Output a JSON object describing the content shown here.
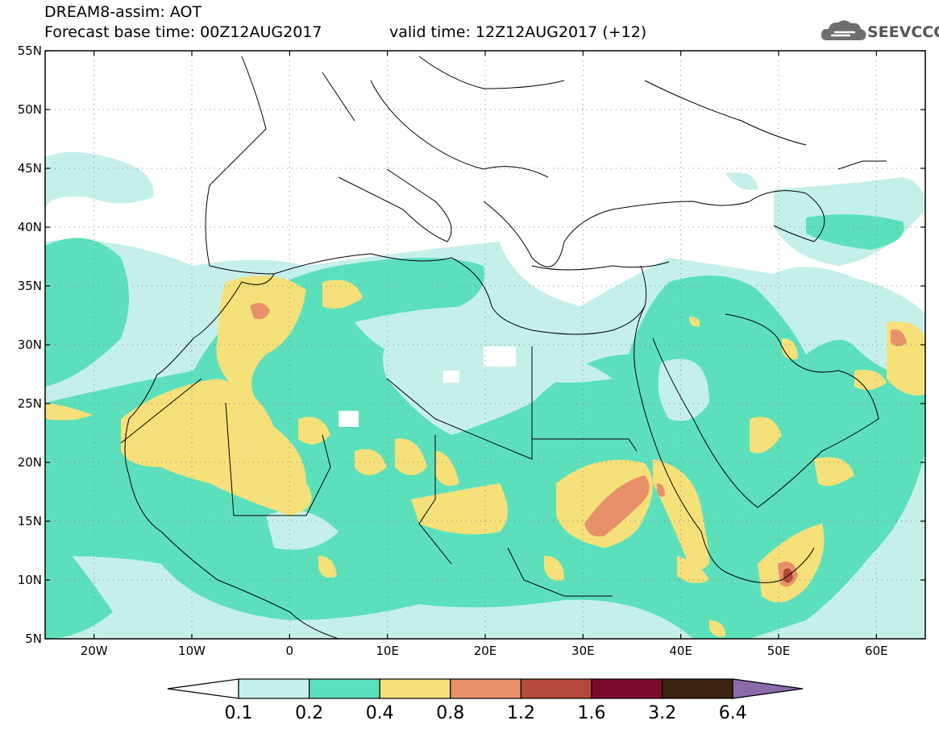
{
  "header": {
    "line1": "DREAM8-assim: AOT",
    "line2_base": "Forecast base time: 00Z12AUG2017",
    "line2_valid": "valid time: 12Z12AUG2017 (+12)"
  },
  "logo": {
    "text": "SEEVCCC",
    "icon": "cloud-logo-icon"
  },
  "map": {
    "lon_range": [
      -25,
      65
    ],
    "lat_range": [
      5,
      55
    ],
    "lat_ticks": [
      {
        "value": 55,
        "label": "55N"
      },
      {
        "value": 50,
        "label": "50N"
      },
      {
        "value": 45,
        "label": "45N"
      },
      {
        "value": 40,
        "label": "40N"
      },
      {
        "value": 35,
        "label": "35N"
      },
      {
        "value": 30,
        "label": "30N"
      },
      {
        "value": 25,
        "label": "25N"
      },
      {
        "value": 20,
        "label": "20N"
      },
      {
        "value": 15,
        "label": "15N"
      },
      {
        "value": 10,
        "label": "10N"
      },
      {
        "value": 5,
        "label": "5N"
      }
    ],
    "lon_ticks": [
      {
        "value": -20,
        "label": "20W"
      },
      {
        "value": -10,
        "label": "10W"
      },
      {
        "value": 0,
        "label": "0"
      },
      {
        "value": 10,
        "label": "10E"
      },
      {
        "value": 20,
        "label": "20E"
      },
      {
        "value": 30,
        "label": "30E"
      },
      {
        "value": 40,
        "label": "40E"
      },
      {
        "value": 50,
        "label": "50E"
      },
      {
        "value": 60,
        "label": "60E"
      }
    ],
    "grid": "dotted"
  },
  "colorbar": {
    "colors": [
      "#c5f0ea",
      "#5ce0bc",
      "#f5e07a",
      "#e8906a",
      "#b54a3c",
      "#7a0a2a",
      "#3d2410"
    ],
    "low_end_color": "#ffffff",
    "high_end_color": "#8a6aaa",
    "labels": [
      "0.1",
      "0.2",
      "0.4",
      "0.8",
      "1.2",
      "1.6",
      "3.2",
      "6.4"
    ]
  }
}
